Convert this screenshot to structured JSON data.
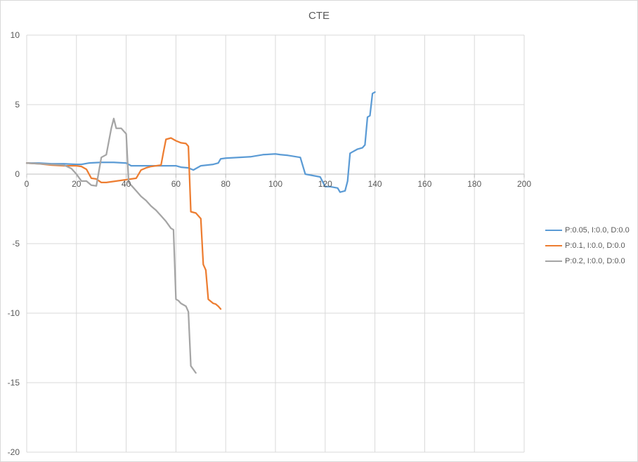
{
  "chart_data": {
    "type": "line",
    "title": "CTE",
    "xlim": [
      0,
      200
    ],
    "ylim": [
      -20,
      10
    ],
    "x_ticks": [
      0,
      20,
      40,
      60,
      80,
      100,
      120,
      140,
      160,
      180,
      200
    ],
    "y_ticks": [
      10,
      5,
      0,
      -5,
      -10,
      -15,
      -20
    ],
    "grid": true,
    "legend_position": "right",
    "series": [
      {
        "name": "P:0.05, I:0.0, D:0.0",
        "color": "#5b9bd5",
        "x": [
          0,
          5,
          10,
          15,
          20,
          22,
          25,
          30,
          35,
          40,
          42,
          45,
          50,
          55,
          60,
          62,
          65,
          67,
          68,
          70,
          75,
          77,
          78,
          80,
          85,
          90,
          95,
          100,
          102,
          105,
          110,
          112,
          115,
          118,
          120,
          122,
          125,
          126,
          128,
          129,
          130,
          131,
          133,
          135,
          136,
          137,
          138,
          139,
          140
        ],
        "y": [
          0.8,
          0.8,
          0.75,
          0.75,
          0.7,
          0.7,
          0.8,
          0.85,
          0.85,
          0.8,
          0.6,
          0.6,
          0.6,
          0.6,
          0.6,
          0.5,
          0.45,
          0.3,
          0.4,
          0.6,
          0.7,
          0.8,
          1.1,
          1.15,
          1.2,
          1.25,
          1.4,
          1.45,
          1.4,
          1.35,
          1.2,
          0.0,
          -0.1,
          -0.2,
          -0.9,
          -0.9,
          -1.0,
          -1.3,
          -1.2,
          -0.5,
          1.5,
          1.6,
          1.8,
          1.9,
          2.1,
          4.1,
          4.2,
          5.8,
          5.9
        ]
      },
      {
        "name": "P:0.1, I:0.0, D:0.0",
        "color": "#ed7d31",
        "x": [
          0,
          5,
          10,
          15,
          20,
          22,
          24,
          26,
          28,
          30,
          32,
          34,
          36,
          38,
          40,
          42,
          44,
          46,
          48,
          50,
          52,
          54,
          55,
          56,
          58,
          60,
          62,
          64,
          65,
          66,
          67,
          68,
          70,
          71,
          72,
          73,
          75,
          76,
          77,
          78
        ],
        "y": [
          0.8,
          0.75,
          0.65,
          0.6,
          0.6,
          0.55,
          0.35,
          -0.3,
          -0.35,
          -0.6,
          -0.6,
          -0.55,
          -0.5,
          -0.45,
          -0.4,
          -0.35,
          -0.3,
          0.3,
          0.45,
          0.55,
          0.6,
          0.65,
          1.6,
          2.5,
          2.6,
          2.4,
          2.25,
          2.2,
          2.0,
          -2.7,
          -2.75,
          -2.8,
          -3.2,
          -6.5,
          -6.9,
          -9.0,
          -9.3,
          -9.35,
          -9.5,
          -9.7
        ]
      },
      {
        "name": "P:0.2, I:0.0, D:0.0",
        "color": "#a5a5a5",
        "x": [
          0,
          5,
          10,
          15,
          18,
          20,
          22,
          24,
          26,
          28,
          30,
          32,
          34,
          35,
          36,
          38,
          40,
          41,
          42,
          44,
          46,
          48,
          50,
          52,
          54,
          56,
          58,
          59,
          60,
          61,
          62,
          64,
          65,
          66,
          68
        ],
        "y": [
          0.8,
          0.75,
          0.7,
          0.65,
          0.4,
          0.0,
          -0.5,
          -0.5,
          -0.8,
          -0.85,
          1.2,
          1.4,
          3.3,
          4.0,
          3.3,
          3.3,
          2.9,
          -0.6,
          -0.8,
          -1.2,
          -1.6,
          -1.9,
          -2.3,
          -2.6,
          -3.0,
          -3.4,
          -3.9,
          -4.0,
          -9.0,
          -9.1,
          -9.3,
          -9.5,
          -9.9,
          -13.8,
          -14.3
        ]
      }
    ]
  }
}
